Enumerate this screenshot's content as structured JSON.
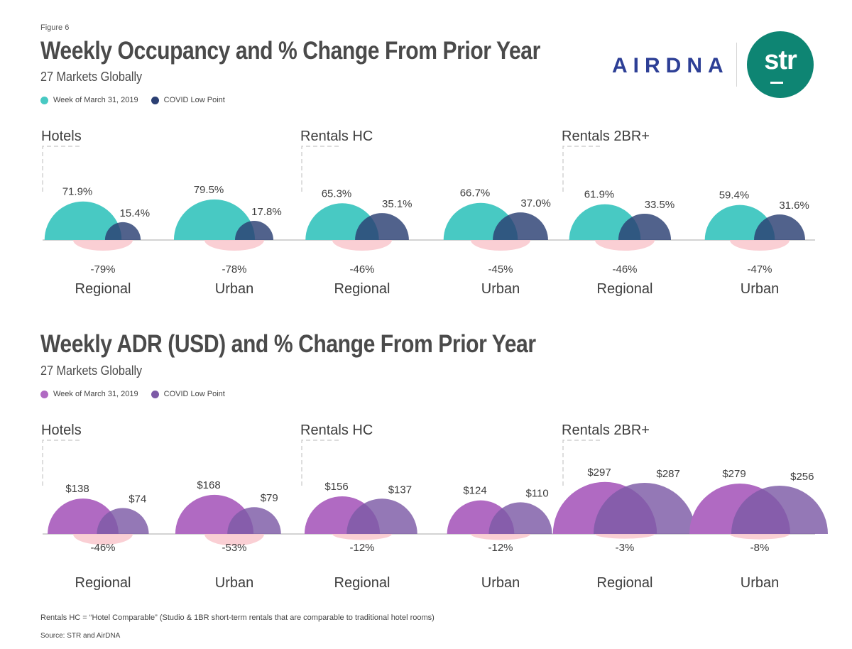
{
  "figure_label": "Figure 6",
  "logos": {
    "airdna": "AIRDNA",
    "str": "str",
    "str_color": "#0e8573",
    "airdna_color": "#2d3f96"
  },
  "footnote": "Rentals HC = “Hotel Comparable” (Studio & 1BR short-term rentals that are comparable to traditional hotel rooms)",
  "source": "Source: STR and AirDNA",
  "chart_data": [
    {
      "type": "semicircle-comparison",
      "title": "Weekly Occupancy and % Change From Prior Year",
      "subtitle": "27 Markets Globally",
      "legend": [
        "Week of March 31, 2019",
        "COVID Low Point"
      ],
      "colors": {
        "baseline": "#48c9c3",
        "covid": "#2b3f73",
        "change": "#f9c7cd"
      },
      "groups": [
        {
          "name": "Hotels",
          "items": [
            {
              "category": "Regional",
              "baseline": 71.9,
              "covid": 15.4,
              "baseline_label": "71.9%",
              "covid_label": "15.4%",
              "change": -79,
              "change_label": "-79%"
            },
            {
              "category": "Urban",
              "baseline": 79.5,
              "covid": 17.8,
              "baseline_label": "79.5%",
              "covid_label": "17.8%",
              "change": -78,
              "change_label": "-78%"
            }
          ]
        },
        {
          "name": "Rentals HC",
          "items": [
            {
              "category": "Regional",
              "baseline": 65.3,
              "covid": 35.1,
              "baseline_label": "65.3%",
              "covid_label": "35.1%",
              "change": -46,
              "change_label": "-46%"
            },
            {
              "category": "Urban",
              "baseline": 66.7,
              "covid": 37.0,
              "baseline_label": "66.7%",
              "covid_label": "37.0%",
              "change": -45,
              "change_label": "-45%"
            }
          ]
        },
        {
          "name": "Rentals 2BR+",
          "items": [
            {
              "category": "Regional",
              "baseline": 61.9,
              "covid": 33.5,
              "baseline_label": "61.9%",
              "covid_label": "33.5%",
              "change": -46,
              "change_label": "-46%"
            },
            {
              "category": "Urban",
              "baseline": 59.4,
              "covid": 31.6,
              "baseline_label": "59.4%",
              "covid_label": "31.6%",
              "change": -47,
              "change_label": "-47%"
            }
          ]
        }
      ]
    },
    {
      "type": "semicircle-comparison",
      "title": "Weekly ADR (USD) and % Change From Prior Year",
      "subtitle": "27 Markets Globally",
      "legend": [
        "Week of March 31, 2019",
        "COVID Low Point"
      ],
      "colors": {
        "baseline": "#b06ac2",
        "covid": "#7d5aa6",
        "change": "#f9c7cd"
      },
      "groups": [
        {
          "name": "Hotels",
          "items": [
            {
              "category": "Regional",
              "baseline": 138,
              "covid": 74,
              "baseline_label": "$138",
              "covid_label": "$74",
              "change": -46,
              "change_label": "-46%"
            },
            {
              "category": "Urban",
              "baseline": 168,
              "covid": 79,
              "baseline_label": "$168",
              "covid_label": "$79",
              "change": -53,
              "change_label": "-53%"
            }
          ]
        },
        {
          "name": "Rentals HC",
          "items": [
            {
              "category": "Regional",
              "baseline": 156,
              "covid": 137,
              "baseline_label": "$156",
              "covid_label": "$137",
              "change": -12,
              "change_label": "-12%"
            },
            {
              "category": "Urban",
              "baseline": 124,
              "covid": 110,
              "baseline_label": "$124",
              "covid_label": "$110",
              "change": -12,
              "change_label": "-12%"
            }
          ]
        },
        {
          "name": "Rentals 2BR+",
          "items": [
            {
              "category": "Regional",
              "baseline": 297,
              "covid": 287,
              "baseline_label": "$297",
              "covid_label": "$287",
              "change": -3,
              "change_label": "-3%"
            },
            {
              "category": "Urban",
              "baseline": 279,
              "covid": 256,
              "baseline_label": "$279",
              "covid_label": "$256",
              "change": -8,
              "change_label": "-8%"
            }
          ]
        }
      ]
    }
  ]
}
